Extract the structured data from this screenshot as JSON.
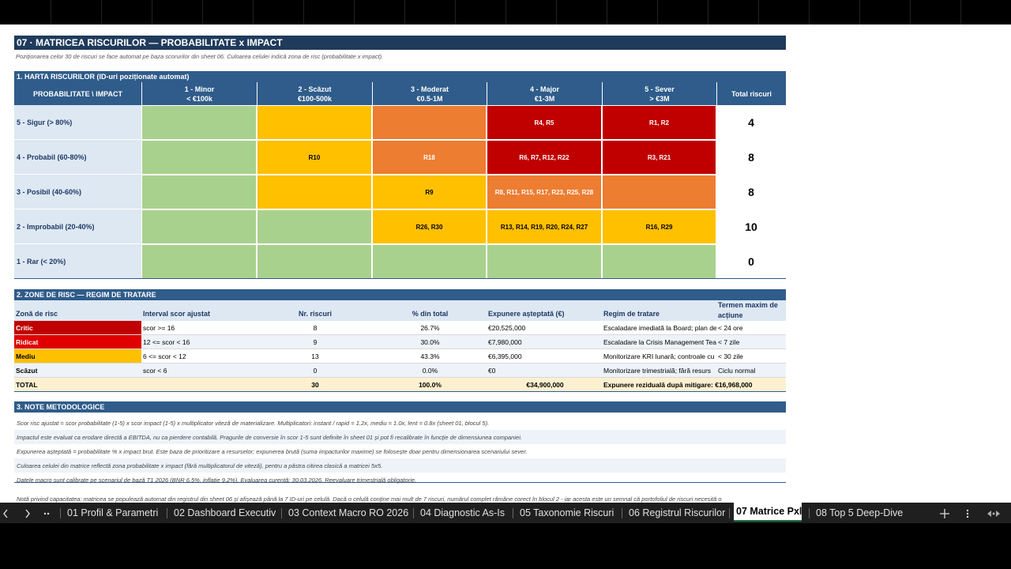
{
  "sheet": {
    "title": "07 · MATRICEA RISCURILOR — PROBABILITATE x IMPACT",
    "subtitle": "Poziționarea celor 30 de riscuri se face automat pe baza scorurilor din sheet 06. Culoarea celulei indică zona de risc (probabilitate x impact).",
    "matrix": {
      "title": "1. HARTA RISCURILOR (ID-uri poziționate automat)",
      "corner": "PROBABILITATE  \\  IMPACT",
      "total_header": "Total riscuri",
      "columns": [
        {
          "name": "1 - Minor",
          "range": "< €100k"
        },
        {
          "name": "2 - Scăzut",
          "range": "€100-500k"
        },
        {
          "name": "3 - Moderat",
          "range": "€0.5-1M"
        },
        {
          "name": "4 - Major",
          "range": "€1-3M"
        },
        {
          "name": "5 - Sever",
          "range": "> €3M"
        }
      ],
      "rows": [
        {
          "label": "5 - Sigur (> 80%)",
          "total": 4,
          "cells": [
            {
              "zone": "low"
            },
            {
              "zone": "medium"
            },
            {
              "zone": "high"
            },
            {
              "zone": "critical",
              "ids": "R4, R5"
            },
            {
              "zone": "critical",
              "ids": "R1, R2"
            }
          ]
        },
        {
          "label": "4 - Probabil (60-80%)",
          "total": 8,
          "cells": [
            {
              "zone": "low"
            },
            {
              "zone": "medium",
              "ids": "R10"
            },
            {
              "zone": "high",
              "ids": "R18"
            },
            {
              "zone": "critical",
              "ids": "R6, R7, R12, R22"
            },
            {
              "zone": "critical",
              "ids": "R3, R21"
            }
          ]
        },
        {
          "label": "3 - Posibil (40-60%)",
          "total": 8,
          "cells": [
            {
              "zone": "low"
            },
            {
              "zone": "medium"
            },
            {
              "zone": "medium",
              "ids": "R9"
            },
            {
              "zone": "high",
              "ids": "R8, R11, R15, R17, R23, R25, R28"
            },
            {
              "zone": "high"
            }
          ]
        },
        {
          "label": "2 - Improbabil (20-40%)",
          "total": 10,
          "cells": [
            {
              "zone": "low"
            },
            {
              "zone": "low"
            },
            {
              "zone": "medium",
              "ids": "R26, R30"
            },
            {
              "zone": "medium",
              "ids": "R13, R14, R19, R20, R24, R27"
            },
            {
              "zone": "medium",
              "ids": "R16, R29"
            }
          ]
        },
        {
          "label": "1 - Rar (< 20%)",
          "total": 0,
          "cells": [
            {
              "zone": "low"
            },
            {
              "zone": "low"
            },
            {
              "zone": "low"
            },
            {
              "zone": "low"
            },
            {
              "zone": "low"
            }
          ]
        }
      ]
    },
    "zones": {
      "title": "2. ZONE DE RISC — REGIM DE TRATARE",
      "headers": [
        "Zonă de risc",
        "Interval scor ajustat",
        "Nr. riscuri",
        "% din total",
        "Expunere așteptată (€)",
        "Regim de tratare",
        "Termen maxim de acțiune"
      ],
      "rows": [
        {
          "zone": "critical",
          "cells": [
            "Critic",
            "scor >= 16",
            8,
            "26.7%",
            "€20,525,000",
            "Escaladare imediată la Board; plan de",
            "< 24 ore"
          ]
        },
        {
          "zone": "ridicat",
          "cells": [
            "Ridicat",
            "12 <= scor < 16",
            9,
            "30.0%",
            "€7,980,000",
            "Escaladare la Crisis Management Tea",
            "< 7 zile"
          ]
        },
        {
          "zone": "medium",
          "cells": [
            "Mediu",
            "6 <= scor < 12",
            13,
            "43.3%",
            "€6,395,000",
            "Monitorizare KRI lunară; controale cu",
            "< 30 zile"
          ]
        },
        {
          "zone": "none",
          "cells": [
            "Scăzut",
            "scor < 6",
            0,
            "0.0%",
            "€0",
            "Monitorizare trimestrială; fără resurs",
            "Ciclu normal"
          ]
        }
      ],
      "total": {
        "label": "TOTAL",
        "count": 30,
        "percent": "100.0%",
        "exposure": "€34,900,000",
        "note": "Expunere reziduală după mitigare: €16,968,000"
      }
    },
    "notes": {
      "title": "3. NOTE METODOLOGICE",
      "lines": [
        "Scor risc ajustat = scor probabilitate (1-5) x scor impact (1-5) x multiplicator viteză de materializare. Multiplicatori: instant / rapid = 1.2x, mediu = 1.0x, lent = 0.8x (sheet 01, blocul 5).",
        "Impactul este evaluat ca erodare directă a EBITDA, nu ca pierdere contabilă. Pragurile de conversie în scor 1-5 sunt definite în sheet 01 și pot fi recalibrate în funcție de dimensiunea companiei.",
        "Expunerea așteptată = probabilitate % x impact brut. Este baza de prioritizare a resurselor; expunerea brută (suma impacturilor maxime) se folosește doar pentru dimensionarea scenariului sever.",
        "Culoarea celulei din matrice reflectă zona probabilitate x impact (fără multiplicatorul de viteză), pentru a păstra citirea clasică a matricei 5x5.",
        "Datele macro sunt calibrate pe scenariul de bază T1 2026 (BNR 6.5%, inflație 9.2%). Evaluarea curentă: 30.03.2026. Reevaluare trimestrială obligatorie."
      ],
      "footnote": "Notă privind capacitatea: matricea se populează automat din registrul din sheet 06 și afișează până la 7 ID-uri pe celulă. Dacă o celulă conține mai mult de 7 riscuri, numărul complet rămâne corect în blocul 2 - iar acesta este un semnal că portofoliul de riscuri necesită o"
    }
  },
  "tabs": {
    "items": [
      "01 Profil & Parametri",
      "02 Dashboard Executiv",
      "03 Context Macro RO 2026",
      "04 Diagnostic As-Is",
      "05 Taxonomie Riscuri",
      "06 Registrul Riscurilor",
      "07 Matrice Pxl",
      "08 Top 5 Deep-Dive"
    ],
    "active": 6
  }
}
